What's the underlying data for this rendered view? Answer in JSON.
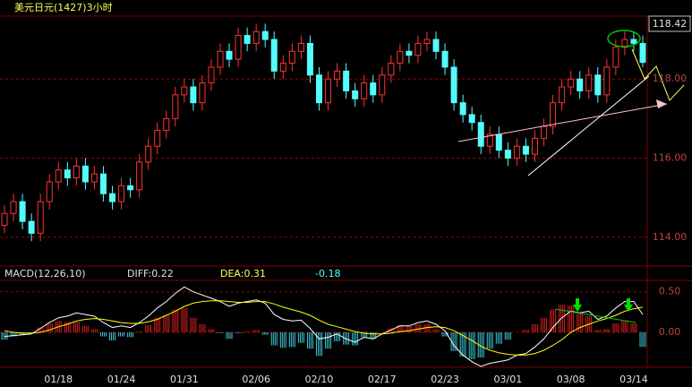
{
  "chart_data": [
    {
      "type": "candlestick",
      "title": "美元日元(1427)3小时",
      "last_price_label": "118.42",
      "up_color": "#ff3232",
      "down_color": "#54fcfc",
      "ylim": [
        113.27,
        119.59
      ],
      "yticks": [
        {
          "value": 114,
          "label": "114.00"
        },
        {
          "value": 116,
          "label": "116.00"
        },
        {
          "value": 118,
          "label": "118.00"
        }
      ],
      "grid": true,
      "open": [
        114.3,
        114.6,
        114.9,
        114.4,
        114.1,
        114.9,
        115.4,
        115.7,
        115.5,
        115.8,
        115.4,
        115.6,
        115.1,
        114.9,
        115.3,
        115.2,
        115.9,
        116.3,
        116.7,
        117.0,
        117.6,
        117.8,
        117.4,
        117.9,
        118.3,
        118.7,
        118.5,
        119.1,
        118.9,
        119.2,
        119.0,
        118.2,
        118.4,
        118.7,
        118.9,
        118.1,
        117.4,
        118.0,
        118.2,
        117.7,
        117.5,
        117.9,
        117.6,
        118.1,
        118.4,
        118.7,
        118.6,
        118.9,
        119.0,
        118.7,
        118.3,
        117.4,
        117.1,
        116.9,
        116.3,
        116.6,
        116.2,
        116.0,
        116.3,
        116.1,
        116.5,
        116.8,
        117.4,
        117.8,
        118.0,
        117.7,
        118.1,
        117.6,
        118.3,
        118.8,
        119.0,
        118.9
      ],
      "high": [
        114.8,
        115.1,
        115.1,
        114.6,
        115.1,
        115.6,
        115.9,
        115.9,
        116.0,
        116.0,
        115.8,
        115.8,
        115.3,
        115.5,
        115.5,
        116.1,
        116.5,
        116.9,
        117.2,
        117.8,
        118.0,
        118.0,
        118.1,
        118.5,
        118.9,
        118.9,
        119.3,
        119.3,
        119.4,
        119.4,
        119.2,
        118.6,
        118.9,
        119.1,
        119.1,
        118.3,
        118.2,
        118.4,
        118.4,
        117.9,
        118.1,
        118.1,
        118.3,
        118.6,
        118.9,
        118.9,
        119.1,
        119.2,
        119.2,
        118.9,
        118.5,
        117.6,
        117.3,
        117.1,
        116.8,
        116.8,
        116.4,
        116.5,
        116.5,
        116.7,
        117.0,
        117.6,
        118.0,
        118.2,
        118.2,
        118.3,
        118.3,
        118.5,
        119.0,
        119.2,
        119.2,
        119.1
      ],
      "low": [
        114.1,
        114.4,
        114.2,
        113.9,
        113.9,
        114.7,
        115.2,
        115.3,
        115.3,
        115.2,
        115.2,
        114.9,
        114.7,
        114.7,
        115.0,
        115.0,
        115.7,
        116.1,
        116.5,
        116.8,
        117.4,
        117.2,
        117.2,
        117.7,
        118.1,
        118.3,
        118.3,
        118.7,
        118.7,
        118.8,
        118.0,
        118.0,
        118.2,
        118.5,
        117.9,
        117.2,
        117.2,
        117.8,
        117.5,
        117.3,
        117.3,
        117.4,
        117.4,
        117.9,
        118.2,
        118.4,
        118.4,
        118.7,
        118.5,
        118.1,
        117.2,
        116.9,
        116.7,
        116.1,
        116.1,
        116.0,
        115.8,
        115.8,
        115.9,
        115.9,
        116.3,
        116.6,
        117.2,
        117.6,
        117.5,
        117.5,
        117.4,
        117.4,
        118.1,
        118.6,
        118.7,
        118.3
      ],
      "close": [
        114.6,
        114.9,
        114.4,
        114.1,
        114.9,
        115.4,
        115.7,
        115.5,
        115.8,
        115.4,
        115.6,
        115.1,
        114.9,
        115.3,
        115.2,
        115.9,
        116.3,
        116.7,
        117.0,
        117.6,
        117.8,
        117.4,
        117.9,
        118.3,
        118.7,
        118.5,
        119.1,
        118.9,
        119.2,
        119.0,
        118.2,
        118.4,
        118.7,
        118.9,
        118.1,
        117.4,
        118.0,
        118.2,
        117.7,
        117.5,
        117.9,
        117.6,
        118.1,
        118.4,
        118.7,
        118.6,
        118.9,
        119.0,
        118.7,
        118.3,
        117.4,
        117.1,
        116.9,
        116.3,
        116.6,
        116.2,
        116.0,
        116.3,
        116.1,
        116.5,
        116.8,
        117.4,
        117.8,
        118.0,
        117.7,
        118.1,
        117.6,
        118.3,
        118.8,
        119.0,
        118.9,
        118.42
      ]
    },
    {
      "type": "macd",
      "title": "MACD(12,26,10)",
      "categories": [
        null,
        null,
        null,
        null,
        null,
        null,
        "01/18",
        null,
        null,
        null,
        null,
        null,
        null,
        "01/24",
        null,
        null,
        null,
        null,
        null,
        null,
        "01/31",
        null,
        null,
        null,
        null,
        null,
        null,
        null,
        "02/06",
        null,
        null,
        null,
        null,
        null,
        null,
        "02/10",
        null,
        null,
        null,
        null,
        null,
        null,
        "02/17",
        null,
        null,
        null,
        null,
        null,
        null,
        "02/23",
        null,
        null,
        null,
        null,
        null,
        null,
        "03/01",
        null,
        null,
        null,
        null,
        null,
        null,
        "03/08",
        null,
        null,
        null,
        null,
        null,
        null,
        "03/14",
        null
      ],
      "ylim": [
        -0.43,
        0.64
      ],
      "yticks": [
        {
          "value": 0,
          "label": "0.00"
        },
        {
          "value": 0.5,
          "label": "0.50"
        }
      ],
      "grid": true,
      "series": [
        {
          "label": "DIFF:0.22",
          "color": "#ffffff",
          "values": [
            -0.05,
            -0.04,
            -0.03,
            -0.02,
            0.05,
            0.12,
            0.18,
            0.2,
            0.24,
            0.22,
            0.2,
            0.12,
            0.06,
            0.08,
            0.06,
            0.12,
            0.2,
            0.3,
            0.38,
            0.48,
            0.56,
            0.5,
            0.46,
            0.42,
            0.38,
            0.32,
            0.36,
            0.38,
            0.4,
            0.36,
            0.22,
            0.16,
            0.14,
            0.15,
            0.05,
            -0.08,
            -0.06,
            -0.02,
            -0.08,
            -0.12,
            -0.06,
            -0.08,
            -0.02,
            0.03,
            0.08,
            0.08,
            0.12,
            0.14,
            0.1,
            0.02,
            -0.16,
            -0.28,
            -0.36,
            -0.42,
            -0.38,
            -0.36,
            -0.34,
            -0.28,
            -0.26,
            -0.18,
            -0.08,
            0.06,
            0.18,
            0.26,
            0.24,
            0.26,
            0.16,
            0.2,
            0.3,
            0.38,
            0.38,
            0.22
          ]
        },
        {
          "label": "DEA:0.31",
          "color": "#ffff00",
          "values": [
            0.02,
            0.0,
            -0.01,
            -0.01,
            0.0,
            0.03,
            0.07,
            0.1,
            0.14,
            0.16,
            0.17,
            0.16,
            0.14,
            0.12,
            0.11,
            0.11,
            0.13,
            0.16,
            0.21,
            0.26,
            0.32,
            0.36,
            0.38,
            0.39,
            0.39,
            0.38,
            0.37,
            0.37,
            0.38,
            0.38,
            0.35,
            0.31,
            0.28,
            0.25,
            0.21,
            0.15,
            0.1,
            0.07,
            0.04,
            0.01,
            -0.01,
            -0.02,
            -0.02,
            -0.01,
            0.01,
            0.02,
            0.04,
            0.06,
            0.07,
            0.06,
            0.02,
            -0.04,
            -0.1,
            -0.17,
            -0.22,
            -0.25,
            -0.27,
            -0.28,
            -0.28,
            -0.26,
            -0.22,
            -0.16,
            -0.09,
            0.0,
            0.06,
            0.1,
            0.14,
            0.17,
            0.21,
            0.26,
            0.29,
            0.31
          ]
        },
        {
          "label": "-0.18",
          "type": "histogram",
          "color": "#d81e1e",
          "down_color": "#3cc8d8",
          "values": [
            -0.09,
            -0.05,
            -0.03,
            -0.01,
            0.06,
            0.11,
            0.14,
            0.13,
            0.13,
            0.08,
            0.04,
            -0.05,
            -0.1,
            -0.05,
            -0.06,
            0.01,
            0.09,
            0.18,
            0.21,
            0.28,
            0.3,
            0.18,
            0.1,
            0.04,
            -0.01,
            -0.08,
            -0.01,
            0.01,
            0.03,
            -0.03,
            -0.16,
            -0.19,
            -0.18,
            -0.13,
            -0.2,
            -0.29,
            -0.2,
            -0.11,
            -0.15,
            -0.16,
            -0.06,
            -0.08,
            0.0,
            0.05,
            0.09,
            0.08,
            0.1,
            0.1,
            0.04,
            -0.05,
            -0.23,
            -0.3,
            -0.33,
            -0.31,
            -0.2,
            -0.14,
            -0.09,
            0.0,
            0.03,
            0.1,
            0.18,
            0.28,
            0.34,
            0.33,
            0.23,
            0.2,
            0.03,
            0.04,
            0.11,
            0.15,
            0.11,
            -0.18
          ]
        }
      ]
    }
  ]
}
